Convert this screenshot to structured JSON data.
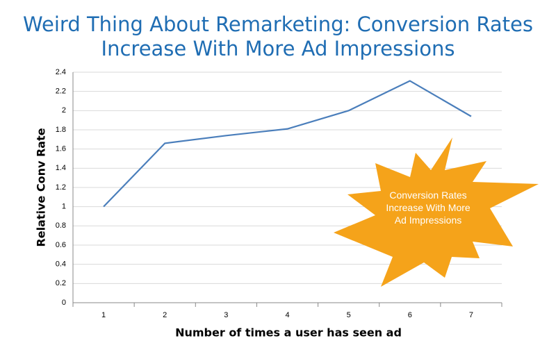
{
  "chart_data": {
    "type": "line",
    "title": "Weird Thing About Remarketing: Conversion Rates Increase With More Ad Impressions",
    "x_label": "Number of times a user has seen ad",
    "y_label": "Relative Conv Rate",
    "categories": [
      "1",
      "2",
      "3",
      "4",
      "5",
      "6",
      "7"
    ],
    "values": [
      1.0,
      1.66,
      1.74,
      1.81,
      2.0,
      2.31,
      1.94
    ],
    "color": "#4a7ebb",
    "ylim": [
      0,
      2.4
    ],
    "yticks": [
      0,
      0.2,
      0.4,
      0.6,
      0.8,
      1,
      1.2,
      1.4,
      1.6,
      1.8,
      2,
      2.2,
      2.4
    ],
    "grid": true,
    "annotation": "Conversion Rates Increase With More Ad Impressions"
  }
}
